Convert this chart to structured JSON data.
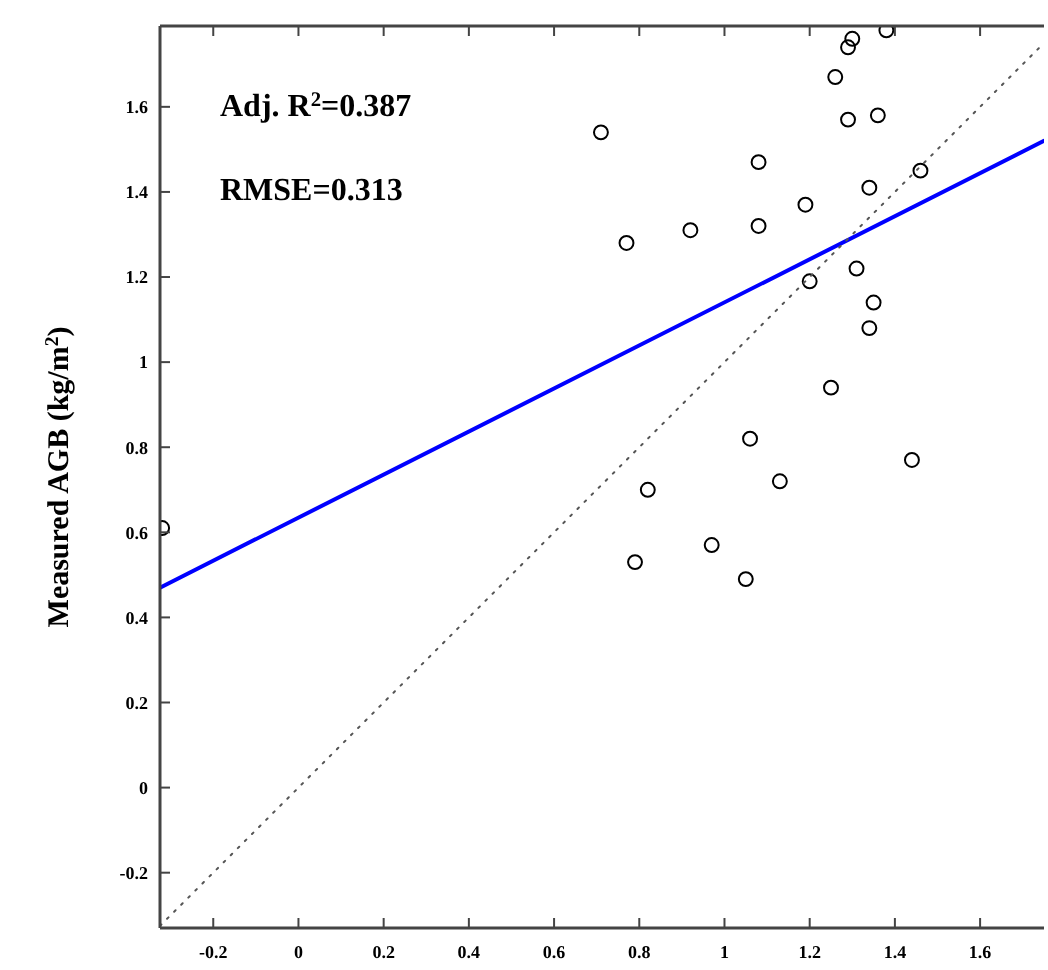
{
  "chart_data": {
    "type": "scatter",
    "ylabel": "Measured AGB (kg/m$^{2}$)",
    "annotations": [
      "Adj. R$^{2}$=0.387",
      "RMSE=0.313"
    ],
    "xlim": [
      -0.325,
      1.75
    ],
    "ylim": [
      -0.33,
      1.79
    ],
    "xticks": [
      -0.2,
      0,
      0.2,
      0.4,
      0.6,
      0.8,
      1,
      1.2,
      1.4,
      1.6
    ],
    "yticks": [
      -0.2,
      0,
      0.2,
      0.4,
      0.6,
      0.8,
      1,
      1.2,
      1.4,
      1.6
    ],
    "grid": false,
    "series": [
      {
        "marker": "circle",
        "color": "#000000",
        "x": [
          0.71,
          0.77,
          0.92,
          1.08,
          1.08,
          1.19,
          1.2,
          1.26,
          1.29,
          1.3,
          1.38,
          1.29,
          1.36,
          1.34,
          1.46,
          1.31,
          1.35,
          1.34,
          1.25,
          1.06,
          1.44,
          1.13,
          0.82,
          -0.32,
          0.97,
          0.79,
          1.05
        ],
        "values": [
          1.54,
          1.28,
          1.31,
          1.47,
          1.32,
          1.37,
          1.19,
          1.67,
          1.74,
          1.76,
          1.78,
          1.57,
          1.58,
          1.41,
          1.45,
          1.22,
          1.14,
          1.08,
          0.94,
          0.82,
          0.77,
          0.72,
          0.7,
          0.61,
          0.57,
          0.53,
          0.49
        ]
      },
      {
        "type": "line",
        "line_style": "solid",
        "color": "#0000ff",
        "x": [
          -0.325,
          1.75
        ],
        "values": [
          0.47,
          1.52
        ]
      },
      {
        "type": "line",
        "line_style": "dotted",
        "color": "#555555",
        "x": [
          -0.325,
          1.75
        ],
        "values": [
          -0.325,
          1.75
        ]
      }
    ]
  }
}
